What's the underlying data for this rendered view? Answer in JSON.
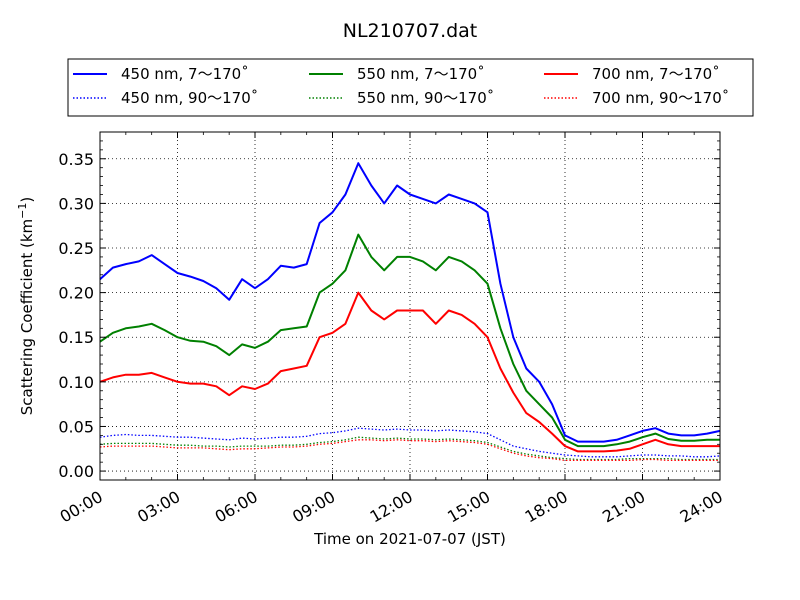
{
  "chart_data": {
    "type": "line",
    "title": "NL210707.dat",
    "xlabel": "Time on 2021-07-07 (JST)",
    "ylabel": "Scattering Coefficient (km",
    "ylabel_sup": "−1",
    "ylabel_close": ")",
    "xlim": [
      "00:00",
      "24:00"
    ],
    "ylim": [
      -0.01,
      0.38
    ],
    "grid": true,
    "legend_position": "top",
    "x_ticks": [
      "00:00",
      "03:00",
      "06:00",
      "09:00",
      "12:00",
      "15:00",
      "18:00",
      "21:00",
      "24:00"
    ],
    "y_ticks": [
      "0.00",
      "0.05",
      "0.10",
      "0.15",
      "0.20",
      "0.25",
      "0.30",
      "0.35"
    ],
    "x": [
      "00:00",
      "00:30",
      "01:00",
      "01:30",
      "02:00",
      "02:30",
      "03:00",
      "03:30",
      "04:00",
      "04:30",
      "05:00",
      "05:30",
      "06:00",
      "06:30",
      "07:00",
      "07:30",
      "08:00",
      "08:30",
      "09:00",
      "09:30",
      "10:00",
      "10:30",
      "11:00",
      "11:30",
      "12:00",
      "12:30",
      "13:00",
      "13:30",
      "14:00",
      "14:30",
      "15:00",
      "15:30",
      "16:00",
      "16:30",
      "17:00",
      "17:30",
      "18:00",
      "18:30",
      "19:00",
      "19:30",
      "20:00",
      "20:30",
      "21:00",
      "21:30",
      "22:00",
      "22:30",
      "23:00",
      "23:30",
      "24:00"
    ],
    "series": [
      {
        "name": "450 nm, 7～170˚",
        "color": "#0000ff",
        "style": "solid",
        "values": [
          0.215,
          0.228,
          0.232,
          0.235,
          0.242,
          0.232,
          0.222,
          0.218,
          0.213,
          0.205,
          0.192,
          0.215,
          0.205,
          0.215,
          0.23,
          0.228,
          0.232,
          0.278,
          0.29,
          0.31,
          0.345,
          0.32,
          0.3,
          0.32,
          0.31,
          0.305,
          0.3,
          0.31,
          0.305,
          0.3,
          0.29,
          0.21,
          0.15,
          0.115,
          0.1,
          0.075,
          0.04,
          0.033,
          0.033,
          0.033,
          0.035,
          0.04,
          0.045,
          0.048,
          0.042,
          0.04,
          0.04,
          0.042,
          0.045
        ]
      },
      {
        "name": "450 nm, 90～170˚",
        "color": "#0000ff",
        "style": "dotted",
        "values": [
          0.038,
          0.04,
          0.041,
          0.04,
          0.04,
          0.039,
          0.038,
          0.038,
          0.037,
          0.036,
          0.035,
          0.037,
          0.036,
          0.037,
          0.038,
          0.038,
          0.039,
          0.042,
          0.043,
          0.045,
          0.048,
          0.047,
          0.046,
          0.047,
          0.046,
          0.046,
          0.045,
          0.046,
          0.045,
          0.044,
          0.042,
          0.035,
          0.028,
          0.025,
          0.022,
          0.02,
          0.018,
          0.017,
          0.016,
          0.016,
          0.016,
          0.017,
          0.018,
          0.018,
          0.017,
          0.017,
          0.016,
          0.016,
          0.017
        ]
      },
      {
        "name": "550 nm, 7～170˚",
        "color": "#008000",
        "style": "solid",
        "values": [
          0.145,
          0.155,
          0.16,
          0.162,
          0.165,
          0.158,
          0.15,
          0.146,
          0.145,
          0.14,
          0.13,
          0.142,
          0.138,
          0.145,
          0.158,
          0.16,
          0.162,
          0.2,
          0.21,
          0.225,
          0.265,
          0.24,
          0.225,
          0.24,
          0.24,
          0.235,
          0.225,
          0.24,
          0.235,
          0.225,
          0.21,
          0.16,
          0.12,
          0.09,
          0.075,
          0.06,
          0.035,
          0.028,
          0.028,
          0.028,
          0.03,
          0.033,
          0.038,
          0.042,
          0.036,
          0.034,
          0.034,
          0.035,
          0.035
        ]
      },
      {
        "name": "550 nm, 90～170˚",
        "color": "#008000",
        "style": "dotted",
        "values": [
          0.03,
          0.031,
          0.031,
          0.031,
          0.031,
          0.03,
          0.029,
          0.029,
          0.028,
          0.028,
          0.027,
          0.028,
          0.028,
          0.028,
          0.029,
          0.029,
          0.03,
          0.032,
          0.033,
          0.035,
          0.038,
          0.037,
          0.036,
          0.037,
          0.036,
          0.036,
          0.035,
          0.036,
          0.035,
          0.034,
          0.032,
          0.027,
          0.022,
          0.019,
          0.017,
          0.015,
          0.014,
          0.013,
          0.013,
          0.013,
          0.013,
          0.014,
          0.014,
          0.014,
          0.014,
          0.013,
          0.013,
          0.013,
          0.013
        ]
      },
      {
        "name": "700 nm, 7～170˚",
        "color": "#ff0000",
        "style": "solid",
        "values": [
          0.1,
          0.105,
          0.108,
          0.108,
          0.11,
          0.105,
          0.1,
          0.098,
          0.098,
          0.095,
          0.085,
          0.095,
          0.092,
          0.098,
          0.112,
          0.115,
          0.118,
          0.15,
          0.155,
          0.165,
          0.2,
          0.18,
          0.17,
          0.18,
          0.18,
          0.18,
          0.165,
          0.18,
          0.175,
          0.165,
          0.15,
          0.115,
          0.088,
          0.065,
          0.055,
          0.042,
          0.028,
          0.022,
          0.022,
          0.022,
          0.023,
          0.025,
          0.03,
          0.035,
          0.03,
          0.028,
          0.028,
          0.028,
          0.028
        ]
      },
      {
        "name": "700 nm, 90～170˚",
        "color": "#ff0000",
        "style": "dotted",
        "values": [
          0.027,
          0.028,
          0.028,
          0.028,
          0.028,
          0.027,
          0.026,
          0.026,
          0.026,
          0.025,
          0.024,
          0.025,
          0.025,
          0.026,
          0.027,
          0.027,
          0.028,
          0.03,
          0.031,
          0.033,
          0.035,
          0.035,
          0.034,
          0.035,
          0.034,
          0.034,
          0.033,
          0.034,
          0.033,
          0.032,
          0.03,
          0.025,
          0.02,
          0.017,
          0.015,
          0.014,
          0.012,
          0.012,
          0.012,
          0.012,
          0.012,
          0.012,
          0.013,
          0.013,
          0.012,
          0.012,
          0.012,
          0.012,
          0.012
        ]
      }
    ]
  }
}
